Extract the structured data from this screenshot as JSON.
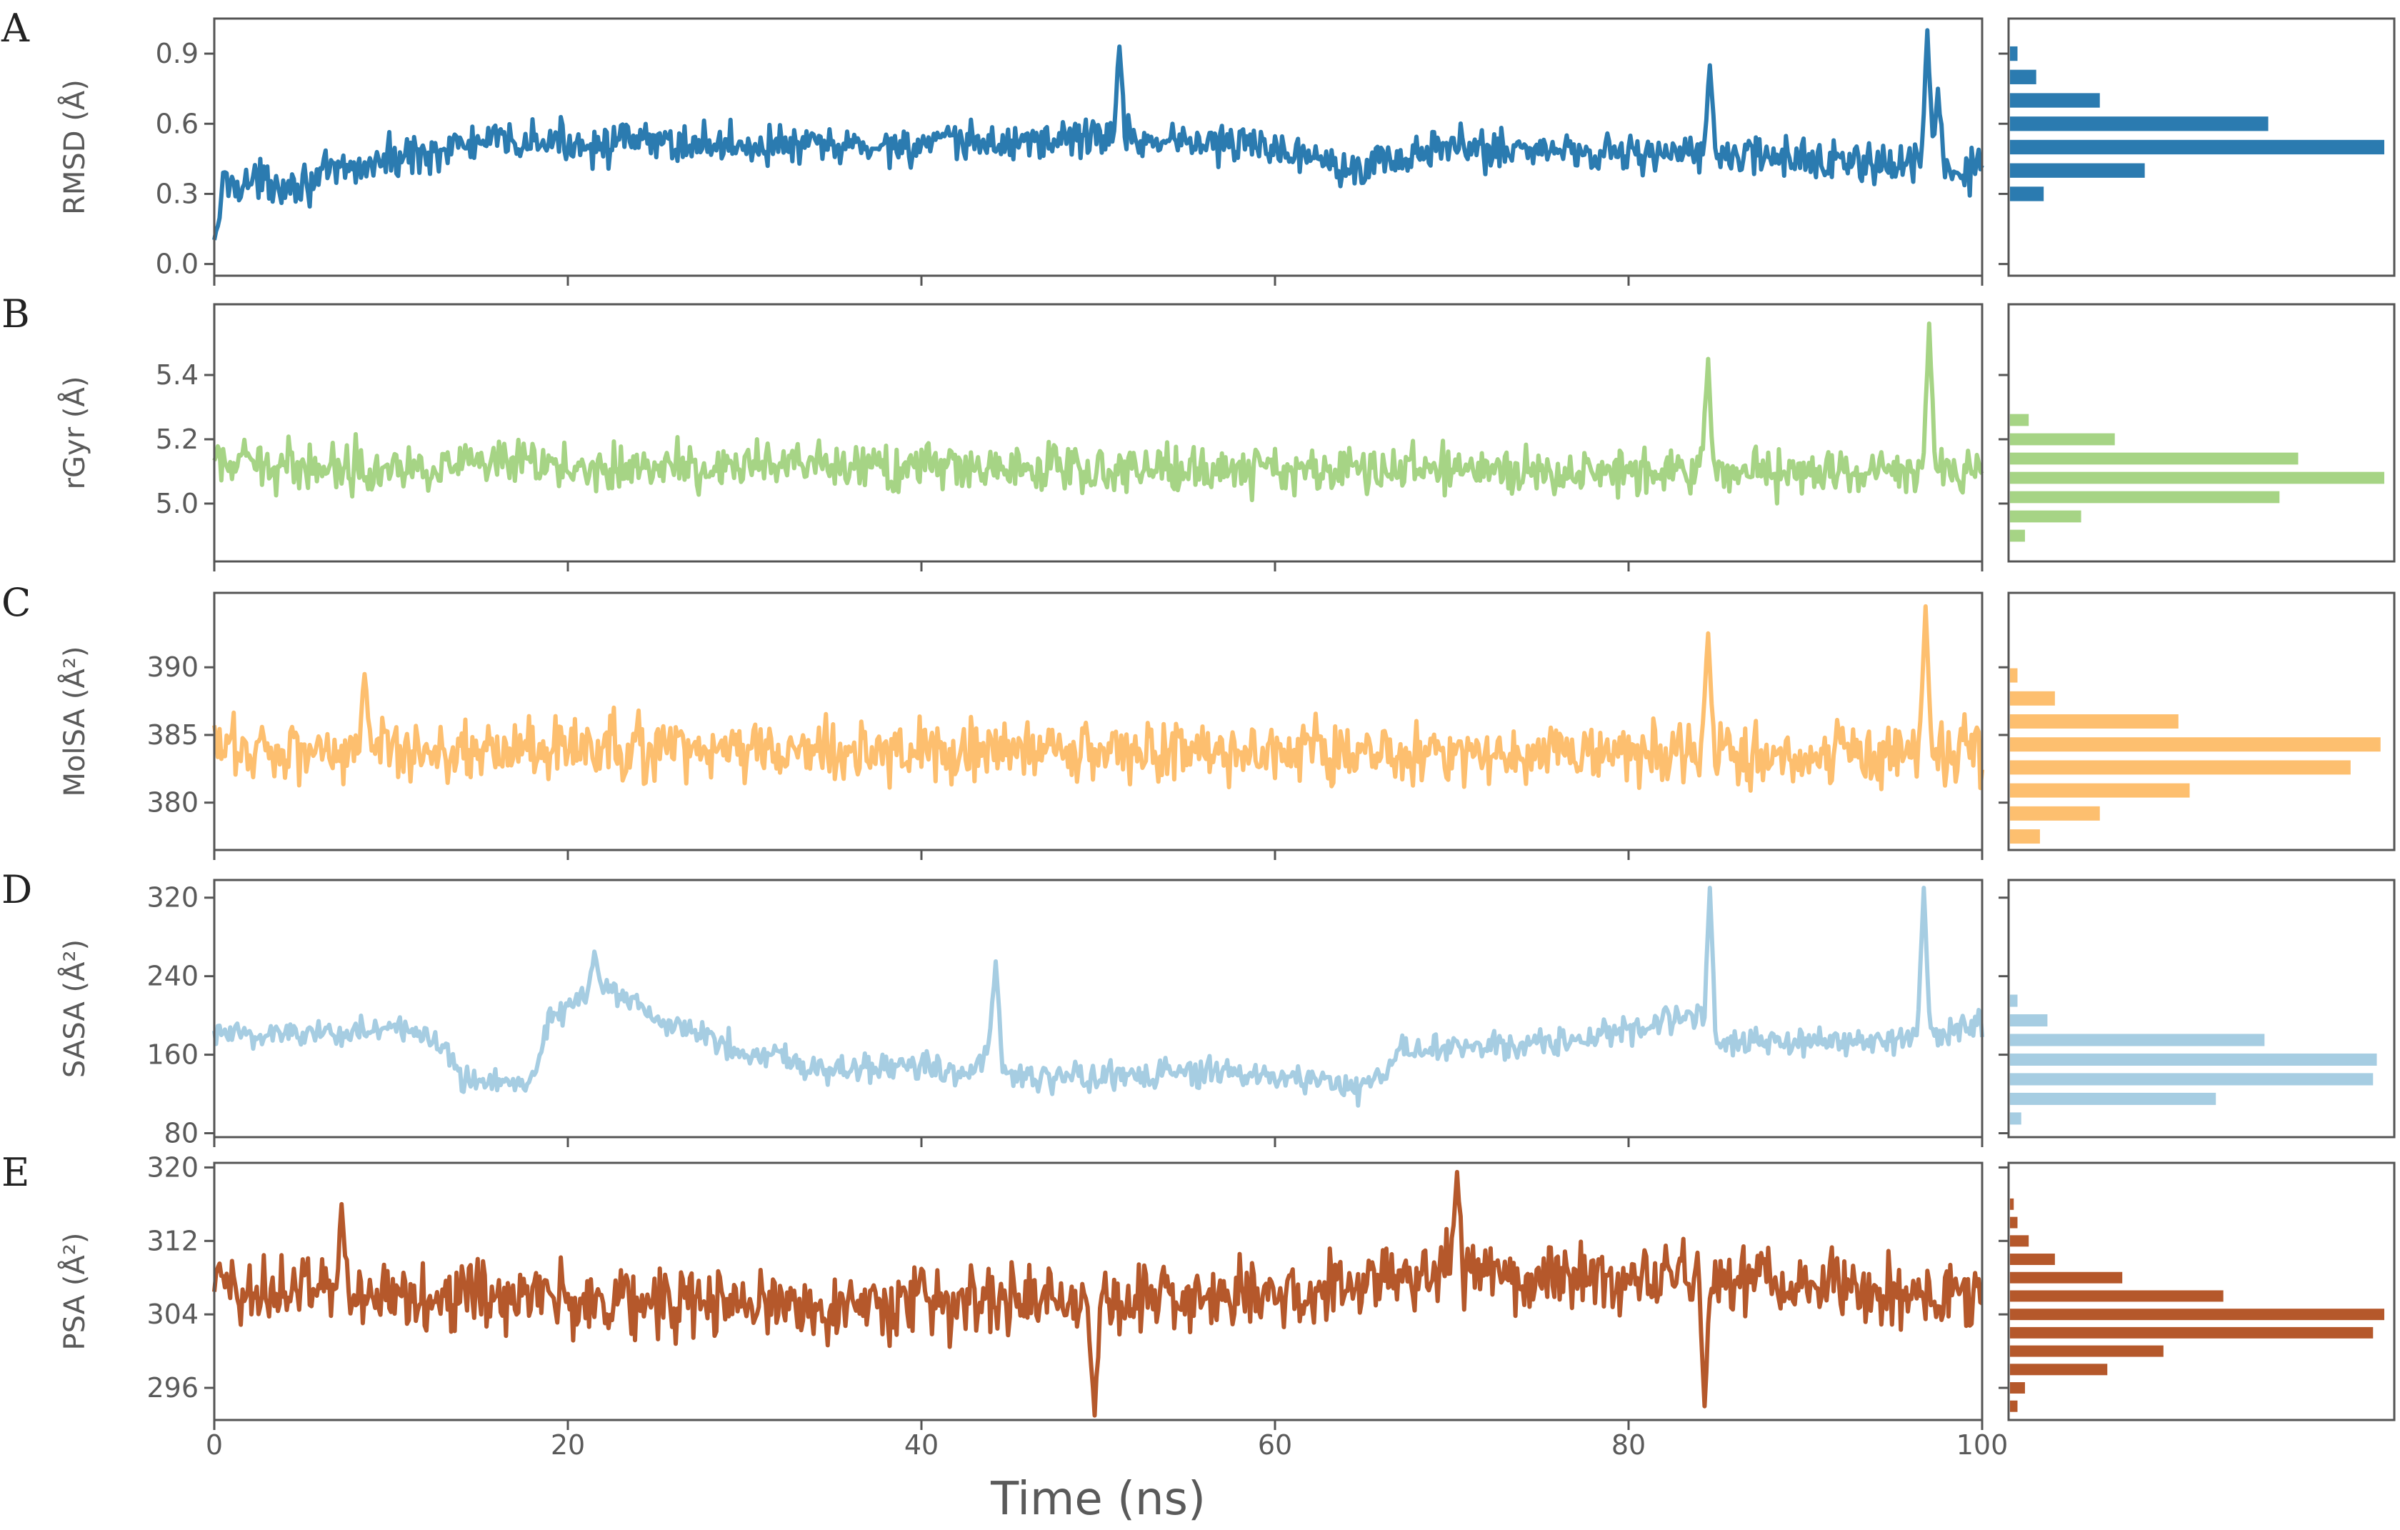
{
  "chart_data": {
    "type": "line",
    "x_axis": {
      "label": "Time (ns)",
      "ticks": [
        "0",
        "20",
        "40",
        "60",
        "80",
        "100"
      ],
      "range": [
        0,
        100
      ]
    },
    "panels": [
      {
        "letter": "A",
        "ylabel": "RMSD (Å)",
        "color": "#2b7bb0",
        "ylim": [
          -0.05,
          1.05
        ],
        "yticks": [
          0.0,
          0.3,
          0.6,
          0.9
        ],
        "ytick_labels": [
          "0.0",
          "0.3",
          "0.6",
          "0.9"
        ],
        "base": [
          [
            0,
            0.05
          ],
          [
            0.5,
            0.35
          ],
          [
            5,
            0.35
          ],
          [
            10,
            0.45
          ],
          [
            15,
            0.52
          ],
          [
            25,
            0.52
          ],
          [
            35,
            0.5
          ],
          [
            45,
            0.52
          ],
          [
            50,
            0.55
          ],
          [
            60,
            0.5
          ],
          [
            65,
            0.42
          ],
          [
            70,
            0.5
          ],
          [
            80,
            0.48
          ],
          [
            90,
            0.45
          ],
          [
            95,
            0.42
          ],
          [
            100,
            0.4
          ]
        ],
        "noise": 0.07,
        "spikes": [
          [
            51.2,
            0.93
          ],
          [
            84.6,
            0.85
          ],
          [
            96.9,
            1.0
          ],
          [
            97.5,
            0.75
          ]
        ],
        "hist": {
          "bins": [
            0.3,
            0.4,
            0.5,
            0.6,
            0.7,
            0.8,
            0.9
          ],
          "counts": [
            0.09,
            0.36,
            1.0,
            0.69,
            0.24,
            0.07,
            0.02
          ]
        }
      },
      {
        "letter": "B",
        "ylabel": "rGyr (Å)",
        "color": "#a6d485",
        "ylim": [
          4.82,
          5.62
        ],
        "yticks": [
          5.0,
          5.2,
          5.4
        ],
        "ytick_labels": [
          "5.0",
          "5.2",
          "5.4"
        ],
        "base": [
          [
            0,
            5.12
          ],
          [
            100,
            5.1
          ]
        ],
        "noise": 0.06,
        "spikes": [
          [
            84.5,
            5.45
          ],
          [
            97.0,
            5.56
          ]
        ],
        "hist": {
          "bins": [
            4.9,
            4.96,
            5.02,
            5.08,
            5.14,
            5.2,
            5.26
          ],
          "counts": [
            0.04,
            0.19,
            0.72,
            1.0,
            0.77,
            0.28,
            0.05
          ]
        }
      },
      {
        "letter": "C",
        "ylabel": "MolSA (Å²)",
        "color": "#fdbf6f",
        "ylim": [
          376.5,
          395.5
        ],
        "yticks": [
          380,
          385,
          390
        ],
        "ytick_labels": [
          "380",
          "385",
          "390"
        ],
        "base": [
          [
            0,
            384
          ],
          [
            100,
            383.5
          ]
        ],
        "noise": 1.9,
        "spikes": [
          [
            8.5,
            389.5
          ],
          [
            84.5,
            392.5
          ],
          [
            96.8,
            394.5
          ]
        ],
        "hist": {
          "bins": [
            377.5,
            379.2,
            380.9,
            382.6,
            384.3,
            386.0,
            387.7,
            389.4
          ],
          "counts": [
            0.08,
            0.24,
            0.48,
            0.91,
            0.99,
            0.45,
            0.12,
            0.02
          ]
        }
      },
      {
        "letter": "D",
        "ylabel": "SASA (Å²)",
        "color": "#a6cde2",
        "ylim": [
          76,
          338
        ],
        "yticks": [
          80,
          160,
          240,
          320
        ],
        "ytick_labels": [
          "80",
          "160",
          "240",
          "320"
        ],
        "base": [
          [
            0,
            180
          ],
          [
            10,
            185
          ],
          [
            13,
            175
          ],
          [
            14,
            135
          ],
          [
            18,
            135
          ],
          [
            19,
            200
          ],
          [
            22,
            230
          ],
          [
            25,
            195
          ],
          [
            30,
            165
          ],
          [
            35,
            145
          ],
          [
            40,
            150
          ],
          [
            43,
            140
          ],
          [
            44,
            175
          ],
          [
            45,
            135
          ],
          [
            55,
            140
          ],
          [
            60,
            140
          ],
          [
            65,
            125
          ],
          [
            66,
            140
          ],
          [
            67,
            165
          ],
          [
            75,
            170
          ],
          [
            80,
            185
          ],
          [
            84,
            200
          ],
          [
            85,
            170
          ],
          [
            95,
            175
          ],
          [
            100,
            190
          ]
        ],
        "noise": 12,
        "spikes": [
          [
            21.5,
            265
          ],
          [
            44.2,
            255
          ],
          [
            84.6,
            330
          ],
          [
            96.7,
            330
          ]
        ],
        "hist": {
          "bins": [
            95,
            115,
            135,
            155,
            175,
            195,
            215,
            235
          ],
          "counts": [
            0.03,
            0.55,
            0.97,
            0.98,
            0.68,
            0.1,
            0.02,
            0.0
          ]
        }
      },
      {
        "letter": "E",
        "ylabel": "PSA (Å²)",
        "color": "#b5582b",
        "ylim": [
          292.5,
          320.5
        ],
        "yticks": [
          296,
          304,
          312,
          320
        ],
        "ytick_labels": [
          "296",
          "304",
          "312",
          "320"
        ],
        "base": [
          [
            0,
            307
          ],
          [
            30,
            305
          ],
          [
            60,
            306
          ],
          [
            70,
            309
          ],
          [
            80,
            308
          ],
          [
            100,
            306
          ]
        ],
        "noise": 3.2,
        "spikes": [
          [
            7.2,
            316
          ],
          [
            49.8,
            293
          ],
          [
            70.3,
            319.5
          ],
          [
            84.3,
            294
          ]
        ],
        "hist": {
          "bins": [
            294,
            296,
            298,
            300,
            302,
            304,
            306,
            308,
            310,
            312,
            314,
            316,
            318
          ],
          "counts": [
            0.02,
            0.04,
            0.26,
            0.41,
            0.97,
            1.0,
            0.57,
            0.3,
            0.12,
            0.05,
            0.02,
            0.01,
            0.0
          ]
        }
      }
    ]
  }
}
